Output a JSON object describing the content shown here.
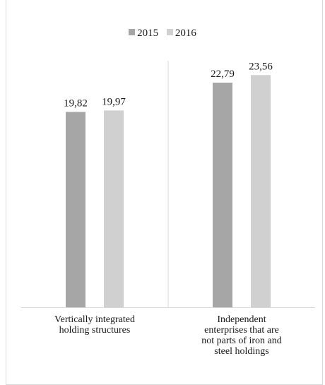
{
  "chart_data": {
    "type": "bar",
    "categories": [
      [
        "Vertically integrated",
        "holding structures"
      ],
      [
        "Independent",
        "enterprises that are",
        "not parts of iron and",
        "steel holdings"
      ]
    ],
    "series": [
      {
        "name": "2015",
        "color": "#a6a6a6",
        "values": [
          19.82,
          22.79
        ],
        "labels": [
          "19,82",
          "22,79"
        ]
      },
      {
        "name": "2016",
        "color": "#d0d0d0",
        "values": [
          19.97,
          23.56
        ],
        "labels": [
          "19,97",
          "23,56"
        ]
      }
    ],
    "ylim": [
      0,
      30
    ],
    "grid": false,
    "legend_position": "top"
  }
}
